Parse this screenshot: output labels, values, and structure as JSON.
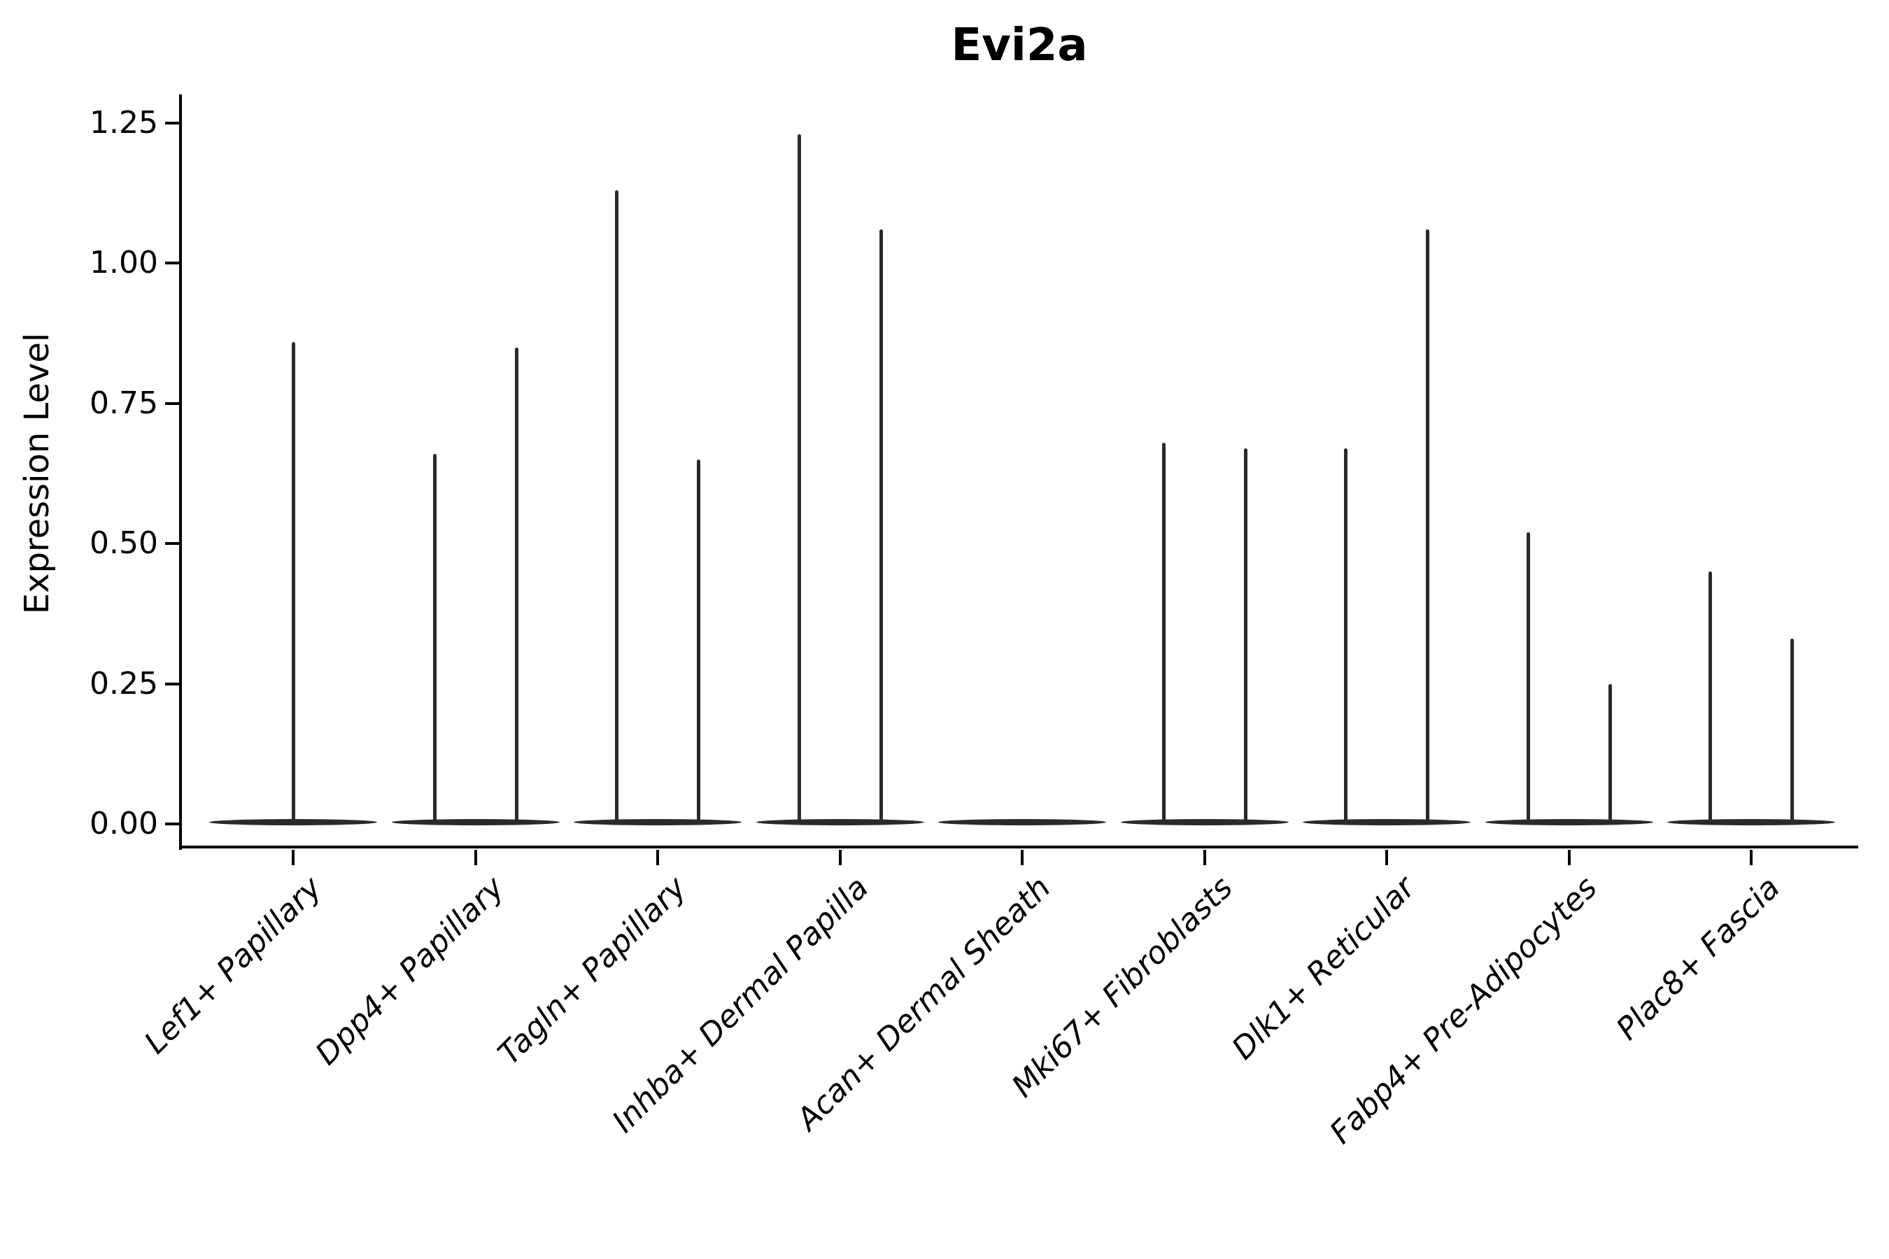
{
  "title": "Evi2a",
  "ylabel": "Expression Level",
  "chart_data": {
    "type": "violin",
    "title": "Evi2a",
    "xlabel": "",
    "ylabel": "Expression Level",
    "ylim": [
      0,
      1.25
    ],
    "grid": false,
    "legend_position": "none",
    "y_tick_labels": [
      "0.00",
      "0.25",
      "0.50",
      "0.75",
      "1.00",
      "1.25"
    ],
    "y_tick_values": [
      0.0,
      0.25,
      0.5,
      0.75,
      1.0,
      1.25
    ],
    "categories": [
      "Lef1+ Papillary",
      "Dpp4+ Papillary",
      "Tagln+ Papillary",
      "Inhba+ Dermal Papilla",
      "Acan+ Dermal Sheath",
      "Mki67+ Fibroblasts",
      "Dlk1+ Reticular",
      "Fabp4+ Pre-Adipocytes",
      "Plac8+ Fascia"
    ],
    "violins": [
      {
        "category": "Lef1+ Papillary",
        "spike_max_values": [
          0.86
        ],
        "arrangement": "single-full-width"
      },
      {
        "category": "Dpp4+ Papillary",
        "spike_max_values": [
          0.66,
          0.85
        ],
        "arrangement": "pair"
      },
      {
        "category": "Tagln+ Papillary",
        "spike_max_values": [
          1.13,
          0.65
        ],
        "arrangement": "pair"
      },
      {
        "category": "Inhba+ Dermal Papilla",
        "spike_max_values": [
          1.23,
          1.06
        ],
        "arrangement": "pair"
      },
      {
        "category": "Acan+ Dermal Sheath",
        "spike_max_values": [],
        "arrangement": "flat-base-only"
      },
      {
        "category": "Mki67+ Fibroblasts",
        "spike_max_values": [
          0.68,
          0.67
        ],
        "arrangement": "pair"
      },
      {
        "category": "Dlk1+ Reticular",
        "spike_max_values": [
          0.67,
          1.06
        ],
        "arrangement": "pair"
      },
      {
        "category": "Fabp4+ Pre-Adipocytes",
        "spike_max_values": [
          0.52,
          0.25
        ],
        "arrangement": "pair"
      },
      {
        "category": "Plac8+ Fascia",
        "spike_max_values": [
          0.45,
          0.33
        ],
        "arrangement": "pair"
      }
    ],
    "colors": {
      "violin_stroke": "#2a2a2a",
      "axis": "#000000",
      "text": "#000000",
      "background": "#ffffff"
    }
  }
}
